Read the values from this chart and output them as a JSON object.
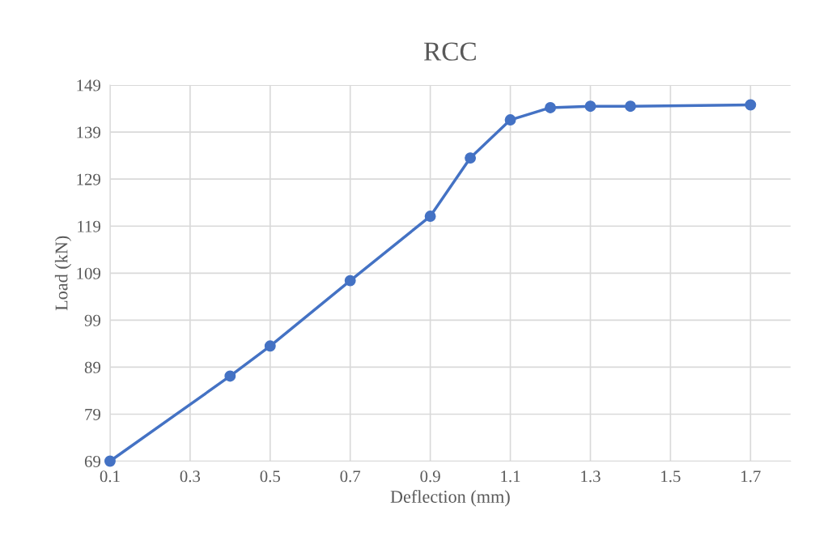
{
  "chart_data": {
    "type": "line",
    "title": "RCC",
    "xlabel": "Deflection (mm)",
    "ylabel": "Load (kN)",
    "series": [
      {
        "color": "#4472c4",
        "x": [
          0.1,
          0.4,
          0.5,
          0.7,
          0.9,
          1.0,
          1.1,
          1.2,
          1.3,
          1.4,
          1.7
        ],
        "values": [
          69,
          87.1,
          93.5,
          107.4,
          121.1,
          133.5,
          141.6,
          144.2,
          144.5,
          144.5,
          144.8
        ]
      }
    ],
    "xlim": [
      0.1,
      1.8
    ],
    "xticks": [
      0.1,
      0.3,
      0.5,
      0.7,
      0.9,
      1.1,
      1.3,
      1.5,
      1.7
    ],
    "ylim": [
      69,
      149
    ],
    "yticks": [
      69,
      79,
      89,
      99,
      109,
      119,
      129,
      139,
      149
    ],
    "grid": true,
    "marker": "circle",
    "line_style": "solid"
  }
}
